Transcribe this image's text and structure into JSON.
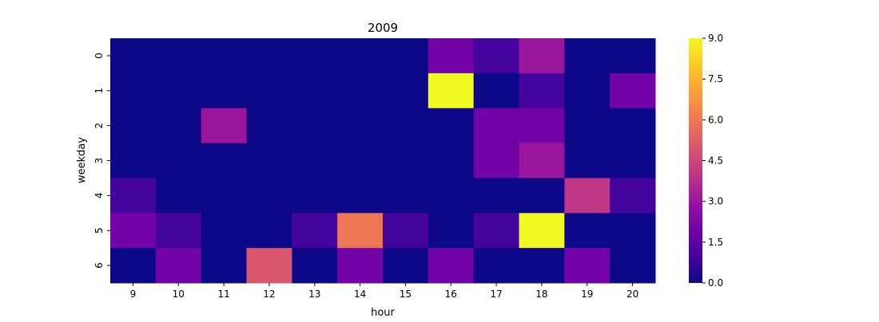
{
  "chart_data": {
    "type": "heatmap",
    "title": "2009",
    "xlabel": "hour",
    "ylabel": "weekday",
    "x": [
      9,
      10,
      11,
      12,
      13,
      14,
      15,
      16,
      17,
      18,
      19,
      20
    ],
    "y": [
      0,
      1,
      2,
      3,
      4,
      5,
      6
    ],
    "values": [
      [
        0,
        0,
        0,
        0,
        0,
        0,
        0,
        2,
        1,
        3,
        0,
        0
      ],
      [
        0,
        0,
        0,
        0,
        0,
        0,
        0,
        9,
        0,
        1,
        0,
        2
      ],
      [
        0,
        0,
        3,
        0,
        0,
        0,
        0,
        0,
        2,
        2,
        0,
        0
      ],
      [
        0,
        0,
        0,
        0,
        0,
        0,
        0,
        0,
        2,
        3,
        0,
        0
      ],
      [
        1,
        0,
        0,
        0,
        0,
        0,
        0,
        0,
        0,
        0,
        4,
        1
      ],
      [
        2,
        1,
        0,
        0,
        1,
        6,
        1,
        0,
        1,
        9,
        0,
        0
      ],
      [
        0,
        2,
        0,
        5,
        0,
        2,
        0,
        2,
        0,
        0,
        2,
        0
      ]
    ],
    "colormap": "plasma",
    "vmin": 0,
    "vmax": 9,
    "colorbar_ticks": [
      "0.0",
      "1.5",
      "3.0",
      "4.5",
      "6.0",
      "7.5",
      "9.0"
    ]
  }
}
